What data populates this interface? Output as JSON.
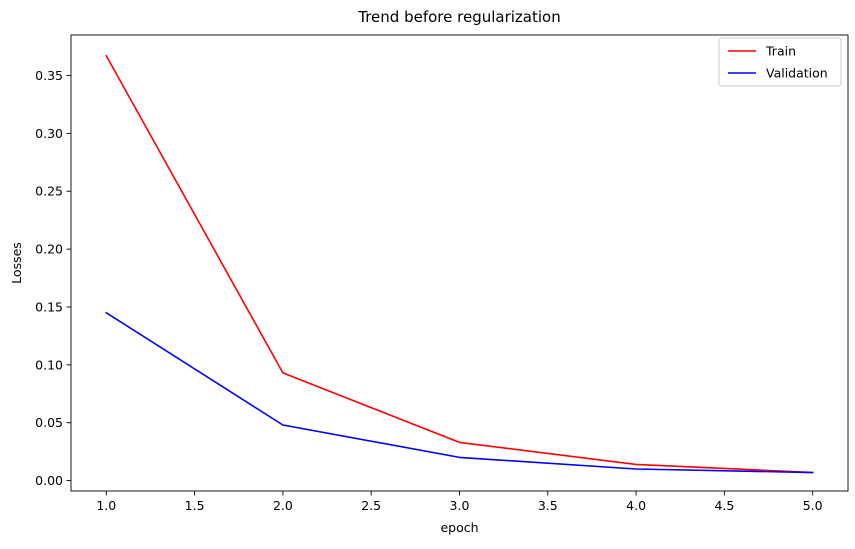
{
  "chart_data": {
    "type": "line",
    "title": "Trend before regularization",
    "xlabel": "epoch",
    "ylabel": "Losses",
    "x": [
      1.0,
      2.0,
      3.0,
      4.0,
      5.0
    ],
    "series": [
      {
        "name": "Train",
        "color": "#ff0000",
        "values": [
          0.367,
          0.093,
          0.033,
          0.014,
          0.007
        ]
      },
      {
        "name": "Validation",
        "color": "#0000ff",
        "values": [
          0.145,
          0.048,
          0.02,
          0.01,
          0.007
        ]
      }
    ],
    "xlim": [
      0.8,
      5.2
    ],
    "ylim": [
      -0.009,
      0.385
    ],
    "xticks": [
      "1.0",
      "1.5",
      "2.0",
      "2.5",
      "3.0",
      "3.5",
      "4.0",
      "4.5",
      "5.0"
    ],
    "yticks": [
      "0.00",
      "0.05",
      "0.10",
      "0.15",
      "0.20",
      "0.25",
      "0.30",
      "0.35"
    ],
    "grid": false,
    "legend_position": "top-right"
  }
}
